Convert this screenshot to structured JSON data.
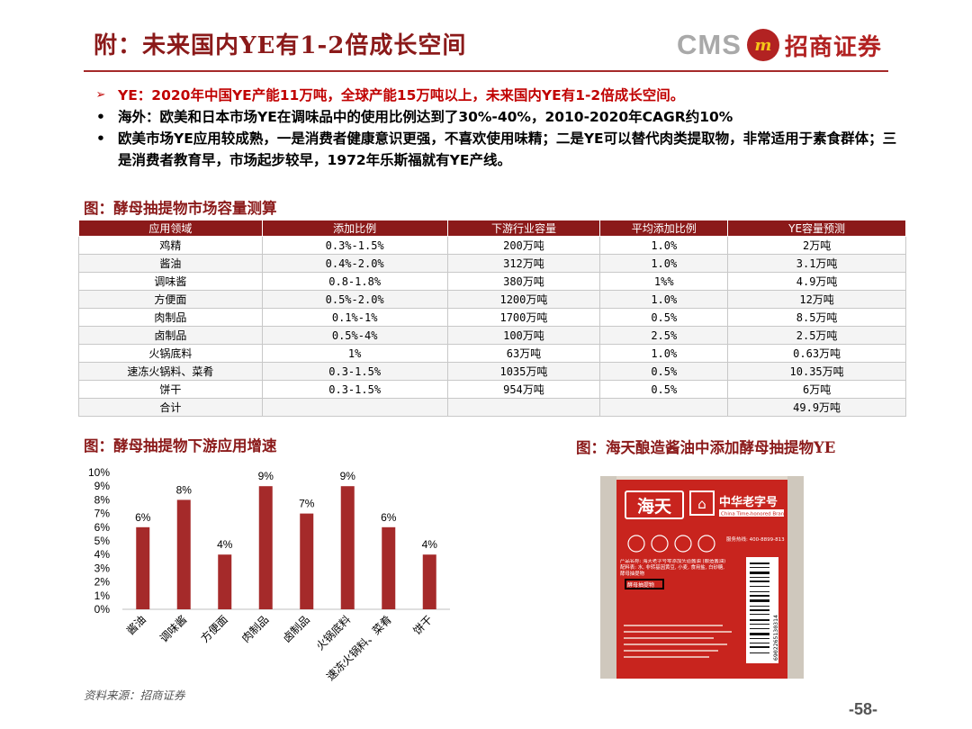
{
  "header": {
    "title": "附：未来国内YE有1-2倍成长空间",
    "logo_text": "CMS",
    "logo_badge": "m",
    "logo_cn": "招商证券"
  },
  "bullets": [
    {
      "mark": "➢",
      "text": "YE：2020年中国YE产能11万吨，全球产能15万吨以上，未来国内YE有1-2倍成长空间。"
    },
    {
      "mark": "•",
      "text": "海外：欧美和日本市场YE在调味品中的使用比例达到了30%-40%，2010-2020年CAGR约10%"
    },
    {
      "mark": "•",
      "text": "欧美市场YE应用较成熟，一是消费者健康意识更强，不喜欢使用味精；二是YE可以替代肉类提取物，非常适用于素食群体；三是消费者教育早，市场起步较早，1972年乐斯福就有YE产线。"
    }
  ],
  "table_caption": "图：酵母抽提物市场容量测算",
  "table": {
    "headers": [
      "应用领域",
      "添加比例",
      "下游行业容量",
      "平均添加比例",
      "YE容量预测"
    ],
    "rows": [
      [
        "鸡精",
        "0.3%-1.5%",
        "200万吨",
        "1.0%",
        "2万吨"
      ],
      [
        "酱油",
        "0.4%-2.0%",
        "312万吨",
        "1.0%",
        "3.1万吨"
      ],
      [
        "调味酱",
        "0.8-1.8%",
        "380万吨",
        "1%%",
        "4.9万吨"
      ],
      [
        "方便面",
        "0.5%-2.0%",
        "1200万吨",
        "1.0%",
        "12万吨"
      ],
      [
        "肉制品",
        "0.1%-1%",
        "1700万吨",
        "0.5%",
        "8.5万吨"
      ],
      [
        "卤制品",
        "0.5%-4%",
        "100万吨",
        "2.5%",
        "2.5万吨"
      ],
      [
        "火锅底料",
        "1%",
        "63万吨",
        "1.0%",
        "0.63万吨"
      ],
      [
        "速冻火锅料、菜肴",
        "0.3-1.5%",
        "1035万吨",
        "0.5%",
        "10.35万吨"
      ],
      [
        "饼干",
        "0.3-1.5%",
        "954万吨",
        "0.5%",
        "6万吨"
      ],
      [
        "合计",
        "",
        "",
        "",
        "49.9万吨"
      ]
    ]
  },
  "chart_caption": "图：酵母抽提物下游应用增速",
  "photo_caption": "图：海天酿造酱油中添加酵母抽提物YE",
  "photo": {
    "brand": "海天",
    "laozihao": "中华老字号",
    "laozihao_en": "China Time-honored Brand",
    "hotline": "服务热线: 400-8899-813",
    "label_text": "产品名称: 海天老字号零添加头道酱油 (酿造酱油) 配料表: 水, 非转基因黄豆, 小麦, 食用盐, 白砂糖, 酵母抽提物",
    "highlight": "酵母抽提物",
    "barcode": "6902265130314"
  },
  "chart_data": {
    "type": "bar",
    "categories": [
      "酱油",
      "调味酱",
      "方便面",
      "肉制品",
      "卤制品",
      "火锅底料",
      "速冻火锅料、菜肴",
      "饼干"
    ],
    "values": [
      6,
      8,
      4,
      9,
      7,
      9,
      6,
      4
    ],
    "data_labels": [
      "6%",
      "8%",
      "4%",
      "9%",
      "7%",
      "9%",
      "6%",
      "4%"
    ],
    "y_ticks": [
      "0%",
      "1%",
      "2%",
      "3%",
      "4%",
      "5%",
      "6%",
      "7%",
      "8%",
      "9%",
      "10%"
    ],
    "ylim": [
      0,
      10
    ],
    "grid": false,
    "bar_color": "#a52a2a"
  },
  "source": "资料来源：招商证券",
  "page_number": "-58-"
}
